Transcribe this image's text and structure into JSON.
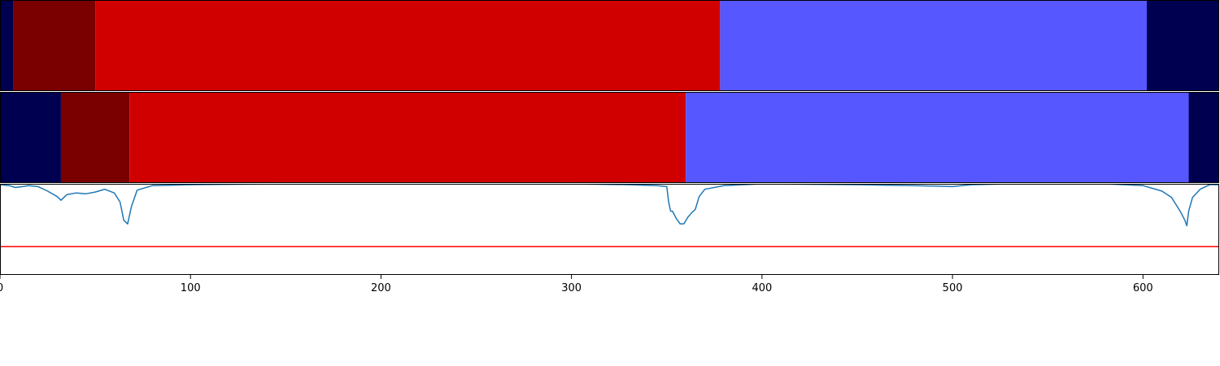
{
  "chart_data": [
    {
      "type": "segments",
      "xlim": [
        0,
        640
      ],
      "segments": [
        {
          "start": 0,
          "end": 7,
          "color": "#000050"
        },
        {
          "start": 7,
          "end": 50,
          "color": "#7a0000"
        },
        {
          "start": 50,
          "end": 378,
          "color": "#d10000"
        },
        {
          "start": 378,
          "end": 602,
          "color": "#5757ff"
        },
        {
          "start": 602,
          "end": 640,
          "color": "#000050"
        }
      ]
    },
    {
      "type": "segments",
      "xlim": [
        0,
        640
      ],
      "segments": [
        {
          "start": 0,
          "end": 32,
          "color": "#000050"
        },
        {
          "start": 32,
          "end": 68,
          "color": "#7a0000"
        },
        {
          "start": 68,
          "end": 360,
          "color": "#d10000"
        },
        {
          "start": 360,
          "end": 624,
          "color": "#5757ff"
        },
        {
          "start": 624,
          "end": 640,
          "color": "#000050"
        }
      ]
    },
    {
      "type": "line",
      "xlim": [
        0,
        640
      ],
      "ylim": [
        0,
        1
      ],
      "xticks": [
        "0",
        "100",
        "200",
        "300",
        "400",
        "500",
        "600"
      ],
      "series": [
        {
          "color": "#1f77b4",
          "points": [
            [
              0,
              0.99
            ],
            [
              5,
              0.98
            ],
            [
              8,
              0.96
            ],
            [
              12,
              0.97
            ],
            [
              15,
              0.98
            ],
            [
              20,
              0.97
            ],
            [
              25,
              0.92
            ],
            [
              30,
              0.86
            ],
            [
              32,
              0.82
            ],
            [
              35,
              0.88
            ],
            [
              40,
              0.9
            ],
            [
              45,
              0.89
            ],
            [
              50,
              0.91
            ],
            [
              55,
              0.94
            ],
            [
              60,
              0.9
            ],
            [
              63,
              0.8
            ],
            [
              65,
              0.6
            ],
            [
              67,
              0.56
            ],
            [
              69,
              0.75
            ],
            [
              72,
              0.93
            ],
            [
              80,
              0.98
            ],
            [
              100,
              0.99
            ],
            [
              150,
              1.0
            ],
            [
              200,
              1.0
            ],
            [
              250,
              1.0
            ],
            [
              300,
              1.0
            ],
            [
              330,
              0.99
            ],
            [
              345,
              0.98
            ],
            [
              350,
              0.97
            ],
            [
              351,
              0.8
            ],
            [
              352,
              0.7
            ],
            [
              353,
              0.7
            ],
            [
              355,
              0.62
            ],
            [
              357,
              0.56
            ],
            [
              359,
              0.56
            ],
            [
              361,
              0.63
            ],
            [
              363,
              0.68
            ],
            [
              365,
              0.72
            ],
            [
              367,
              0.86
            ],
            [
              370,
              0.94
            ],
            [
              380,
              0.98
            ],
            [
              400,
              1.0
            ],
            [
              450,
              0.99
            ],
            [
              480,
              0.98
            ],
            [
              500,
              0.97
            ],
            [
              510,
              0.99
            ],
            [
              530,
              1.0
            ],
            [
              550,
              1.0
            ],
            [
              580,
              1.0
            ],
            [
              600,
              0.98
            ],
            [
              610,
              0.92
            ],
            [
              615,
              0.85
            ],
            [
              618,
              0.75
            ],
            [
              620,
              0.68
            ],
            [
              622,
              0.6
            ],
            [
              623,
              0.54
            ],
            [
              624,
              0.7
            ],
            [
              626,
              0.85
            ],
            [
              630,
              0.94
            ],
            [
              635,
              0.99
            ],
            [
              640,
              0.99
            ]
          ]
        }
      ],
      "threshold": {
        "y": 0.31,
        "color": "#ff0000"
      }
    }
  ]
}
